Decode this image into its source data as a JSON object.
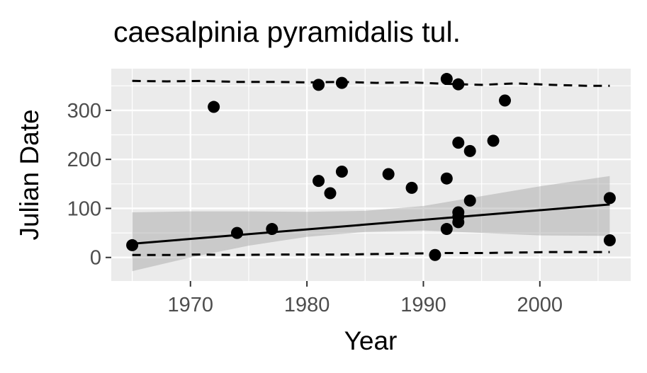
{
  "chart_data": {
    "type": "scatter",
    "title": "caesalpinia pyramidalis tul.",
    "xlabel": "Year",
    "ylabel": "Julian Date",
    "xlim": [
      1963.2,
      2007.8
    ],
    "ylim": [
      -48,
      385
    ],
    "x_ticks": [
      1970,
      1980,
      1990,
      2000
    ],
    "y_ticks": [
      0,
      100,
      200,
      300
    ],
    "x_tick_labels": [
      "1970",
      "1980",
      "1990",
      "2000"
    ],
    "y_tick_labels": [
      "0",
      "100",
      "200",
      "300"
    ],
    "grid": true,
    "legend": "none",
    "points": [
      {
        "x": 1965,
        "y": 25
      },
      {
        "x": 1972,
        "y": 307
      },
      {
        "x": 1974,
        "y": 50
      },
      {
        "x": 1977,
        "y": 58
      },
      {
        "x": 1981,
        "y": 352
      },
      {
        "x": 1981,
        "y": 156
      },
      {
        "x": 1982,
        "y": 131
      },
      {
        "x": 1983,
        "y": 356
      },
      {
        "x": 1983,
        "y": 175
      },
      {
        "x": 1987,
        "y": 170
      },
      {
        "x": 1989,
        "y": 142
      },
      {
        "x": 1991,
        "y": 5
      },
      {
        "x": 1992,
        "y": 364
      },
      {
        "x": 1992,
        "y": 161
      },
      {
        "x": 1992,
        "y": 58
      },
      {
        "x": 1993,
        "y": 353
      },
      {
        "x": 1993,
        "y": 234
      },
      {
        "x": 1993,
        "y": 92
      },
      {
        "x": 1993,
        "y": 83
      },
      {
        "x": 1993,
        "y": 72
      },
      {
        "x": 1994,
        "y": 217
      },
      {
        "x": 1994,
        "y": 116
      },
      {
        "x": 1996,
        "y": 238
      },
      {
        "x": 1997,
        "y": 320
      },
      {
        "x": 2006,
        "y": 121
      },
      {
        "x": 2006,
        "y": 35
      }
    ],
    "trend_line": {
      "x": [
        1965,
        2006
      ],
      "y": [
        28,
        108
      ]
    },
    "confidence_band": {
      "x": [
        1965,
        1970,
        1975,
        1980,
        1985,
        1990,
        1995,
        2000,
        2006
      ],
      "lower": [
        -28,
        0,
        24,
        42,
        52,
        55,
        50,
        45,
        44
      ],
      "upper": [
        92,
        94,
        94,
        93,
        95,
        105,
        125,
        145,
        166
      ]
    },
    "upper_quantile_line": {
      "x": [
        1965,
        1968,
        1971,
        1974,
        1977,
        1980,
        1983,
        1986,
        1989,
        1992,
        1995,
        1998,
        2001,
        2004,
        2006
      ],
      "y": [
        360,
        359,
        360,
        358,
        358,
        357,
        358,
        356,
        357,
        354,
        352,
        355,
        352,
        350,
        350
      ]
    },
    "lower_quantile_line": {
      "x": [
        1965,
        1968,
        1971,
        1974,
        1977,
        1980,
        1983,
        1986,
        1989,
        1992,
        1995,
        1998,
        2001,
        2004,
        2006
      ],
      "y": [
        5,
        5,
        6,
        5,
        6,
        6,
        6,
        7,
        8,
        9,
        9,
        10,
        11,
        11,
        11
      ]
    },
    "colors": {
      "panel_background": "#ebebeb",
      "grid": "#ffffff",
      "points": "#000000",
      "trend_line": "#000000",
      "band": "#999999",
      "quantile_lines": "#000000",
      "tick_label": "#4d4d4d",
      "tick_mark": "#333333"
    }
  }
}
